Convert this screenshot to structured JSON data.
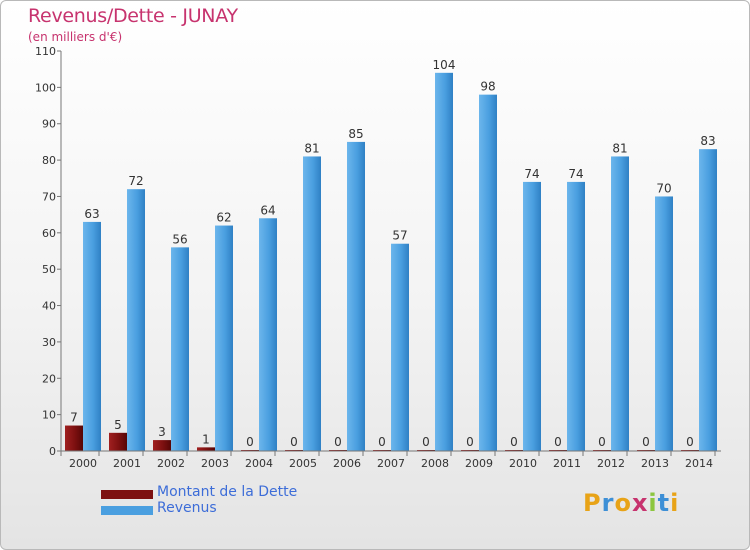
{
  "title": "Revenus/Dette - JUNAY",
  "subtitle": "(en milliers d'€)",
  "colors": {
    "title": "#c7336e",
    "dette": "#7d1010",
    "revenus": "#4a9fe0",
    "legend_text": "#3d6dd8"
  },
  "legend": [
    {
      "label": "Montant de la Dette",
      "color": "#7d1010"
    },
    {
      "label": "Revenus",
      "color": "#4a9fe0"
    }
  ],
  "logo": {
    "text": "Proxiti",
    "letter_colors": [
      "#e8a317",
      "#3d8fd6",
      "#e8a317",
      "#c7336e",
      "#8cc63f",
      "#3d8fd6",
      "#e8a317"
    ]
  },
  "chart_data": {
    "type": "bar",
    "title": "Revenus/Dette - JUNAY",
    "subtitle": "(en milliers d'€)",
    "xlabel": "",
    "ylabel": "",
    "categories": [
      "2000",
      "2001",
      "2002",
      "2003",
      "2004",
      "2005",
      "2006",
      "2007",
      "2008",
      "2009",
      "2010",
      "2011",
      "2012",
      "2013",
      "2014"
    ],
    "series": [
      {
        "name": "Montant de la Dette",
        "values": [
          7,
          5,
          3,
          1,
          0,
          0,
          0,
          0,
          0,
          0,
          0,
          0,
          0,
          0,
          0
        ]
      },
      {
        "name": "Revenus",
        "values": [
          63,
          72,
          56,
          62,
          64,
          81,
          85,
          57,
          104,
          98,
          74,
          74,
          81,
          70,
          83
        ]
      }
    ],
    "ylim": [
      0,
      110
    ],
    "yticks": [
      0,
      10,
      20,
      30,
      40,
      50,
      60,
      70,
      80,
      90,
      100,
      110
    ],
    "grid": false,
    "legend_position": "bottom-left"
  }
}
